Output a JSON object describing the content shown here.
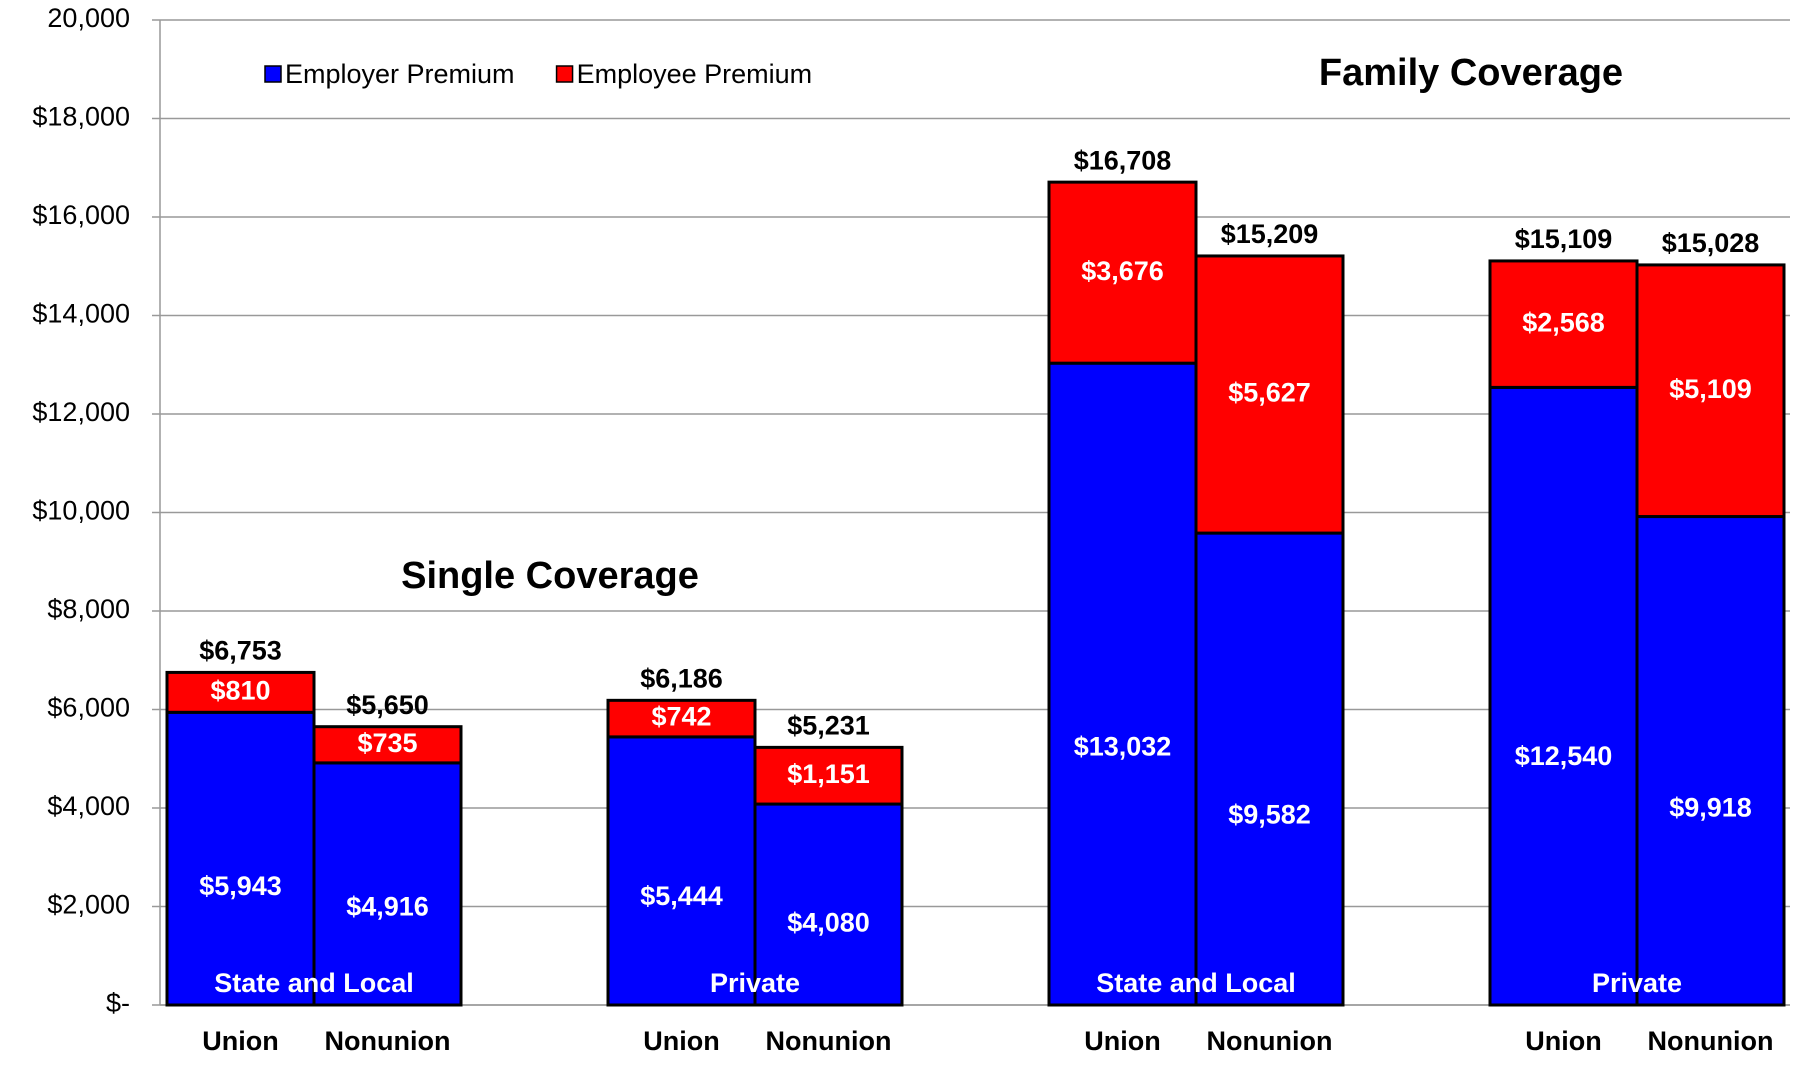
{
  "chart_data": {
    "type": "stacked-bar",
    "categories": [
      "Union",
      "Nonunion",
      "Union",
      "Nonunion",
      "Union",
      "Nonunion",
      "Union",
      "Nonunion"
    ],
    "groups": [
      "State and Local",
      "Private",
      "State and Local",
      "Private"
    ],
    "annotations": [
      "Single Coverage",
      "Family Coverage"
    ],
    "series": [
      {
        "name": "Employer Premium",
        "color": "#0000ff",
        "values": [
          5943,
          4916,
          5444,
          4080,
          13032,
          9582,
          12540,
          9918
        ],
        "value_labels": [
          "$5,943",
          "$4,916",
          "$5,444",
          "$4,080",
          "$13,032",
          "$9,582",
          "$12,540",
          "$9,918"
        ]
      },
      {
        "name": "Employee Premium",
        "color": "#ff0000",
        "values": [
          810,
          735,
          742,
          1151,
          3676,
          5627,
          2568,
          5109
        ],
        "value_labels": [
          "$810",
          "$735",
          "$742",
          "$1,151",
          "$3,676",
          "$5,627",
          "$2,568",
          "$5,109"
        ]
      }
    ],
    "totals": [
      6753,
      5650,
      6186,
      5231,
      16708,
      15209,
      15109,
      15028
    ],
    "total_labels": [
      "$6,753",
      "$5,650",
      "$6,186",
      "$5,231",
      "$16,708",
      "$15,209",
      "$15,109",
      "$15,028"
    ],
    "ylim": [
      0,
      20000
    ],
    "yticks": [
      {
        "value": 0,
        "label": "$-"
      },
      {
        "value": 2000,
        "label": "$2,000"
      },
      {
        "value": 4000,
        "label": "$4,000"
      },
      {
        "value": 6000,
        "label": "$6,000"
      },
      {
        "value": 8000,
        "label": "$8,000"
      },
      {
        "value": 10000,
        "label": "$10,000"
      },
      {
        "value": 12000,
        "label": "$12,000"
      },
      {
        "value": 14000,
        "label": "$14,000"
      },
      {
        "value": 16000,
        "label": "$16,000"
      },
      {
        "value": 18000,
        "label": "$18,000"
      },
      {
        "value": 20000,
        "label": "20,000"
      }
    ],
    "grid": true
  }
}
